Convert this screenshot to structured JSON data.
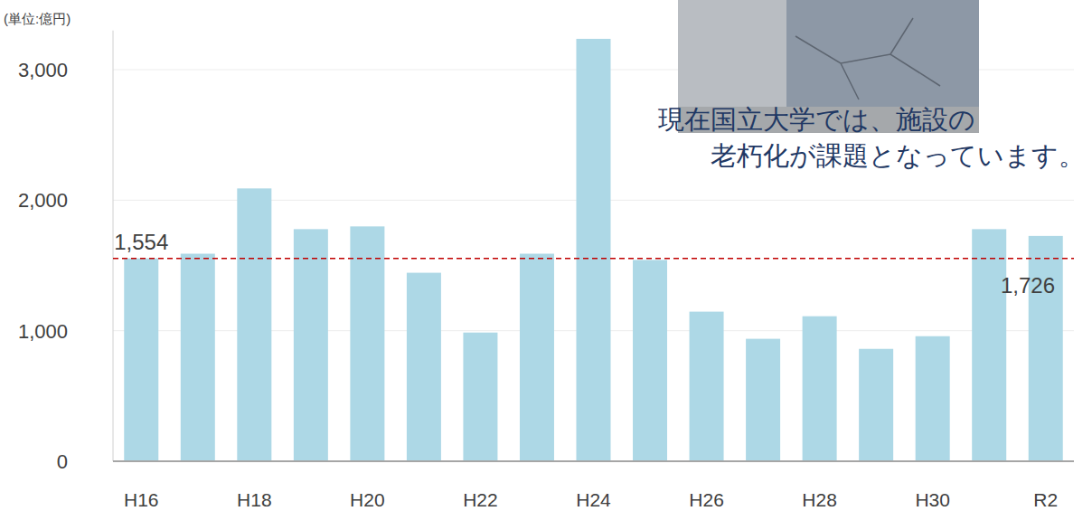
{
  "chart_data": {
    "type": "bar",
    "y_label": "(単位:億円)",
    "callout": [
      "現在国立大学では、施設の",
      "老朽化が課題となっています。"
    ],
    "categories": [
      "H16",
      null,
      "H18",
      null,
      "H20",
      null,
      "H22",
      null,
      "H24",
      null,
      "H26",
      null,
      "H28",
      null,
      "H30",
      null,
      "R2"
    ],
    "values": [
      1554,
      1590,
      2090,
      1778,
      1799,
      1444,
      986,
      1590,
      3236,
      1542,
      1146,
      938,
      1111,
      861,
      958,
      1778,
      1726
    ],
    "color": "#add8e6",
    "ylim": [
      0,
      3300
    ],
    "yticks": [
      0,
      {
        "value": 1000,
        "label": "1,000"
      },
      {
        "value": 2000,
        "label": "2,000"
      },
      {
        "value": 3000,
        "label": "3,000"
      }
    ],
    "grid": true,
    "reference_line": {
      "value": 1554,
      "color": "#c00000",
      "line_style": "dashed"
    },
    "annotations": [
      {
        "label": "1,554",
        "value": 1554,
        "x": "H16"
      },
      {
        "label": "1,726",
        "value": 1726,
        "x": "R2"
      }
    ]
  }
}
